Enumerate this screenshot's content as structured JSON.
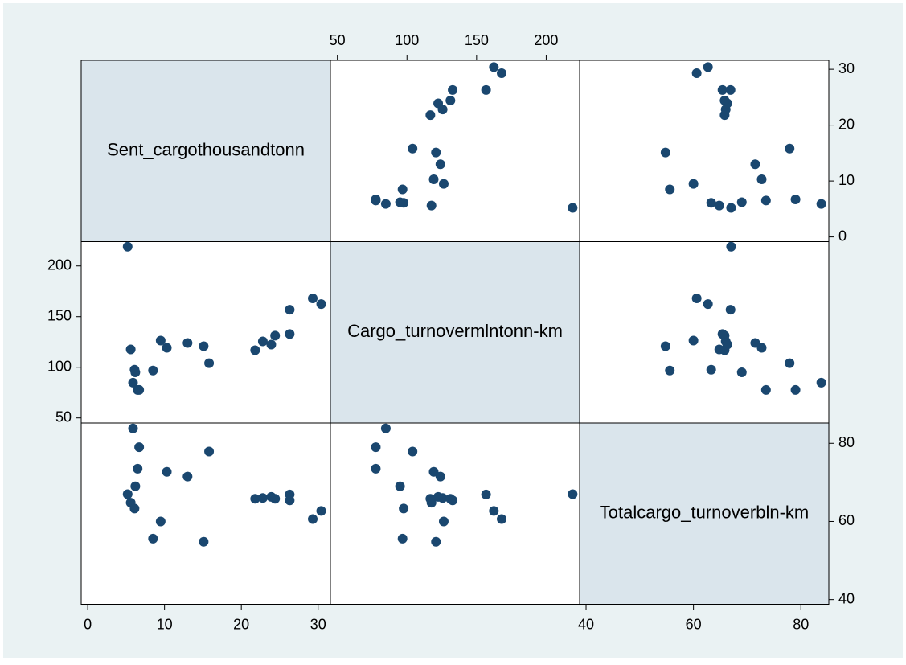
{
  "chart_data": {
    "type": "scatter_matrix",
    "color": "#1a476f",
    "variables": [
      {
        "name": "Sent_cargothousandtonn",
        "values": [
          5.2,
          5.6,
          6.1,
          5.9,
          6.5,
          6.7,
          8.5,
          9.5,
          10.3,
          13.0,
          15.1,
          15.8,
          21.8,
          22.8,
          23.9,
          24.4,
          26.3,
          26.3,
          29.3,
          30.4,
          6.2
        ],
        "lim": [
          -0.85,
          31.6
        ],
        "ticks": [
          0,
          10,
          20,
          30
        ]
      },
      {
        "name": "Cargo_turnovermlntonn-km",
        "values": [
          219,
          117.6,
          97.6,
          84.8,
          77.6,
          77.6,
          96.8,
          126.4,
          119.2,
          124,
          120.8,
          104,
          116.8,
          125.6,
          122.4,
          131.2,
          132.8,
          156.8,
          168,
          162.4,
          95
        ],
        "lim": [
          45,
          224
        ],
        "ticks": [
          50,
          100,
          150,
          200
        ]
      },
      {
        "name": "Totalcargo_turnoverbln-km",
        "values": [
          67,
          64.8,
          63.3,
          83.8,
          73.5,
          79,
          55.6,
          60,
          72.7,
          71.5,
          54.8,
          77.9,
          65.8,
          66,
          66.3,
          65.8,
          65.4,
          66.9,
          60.6,
          62.7,
          69
        ],
        "lim": [
          38.8,
          85.2
        ],
        "ticks": [
          40,
          60,
          80
        ]
      }
    ]
  }
}
